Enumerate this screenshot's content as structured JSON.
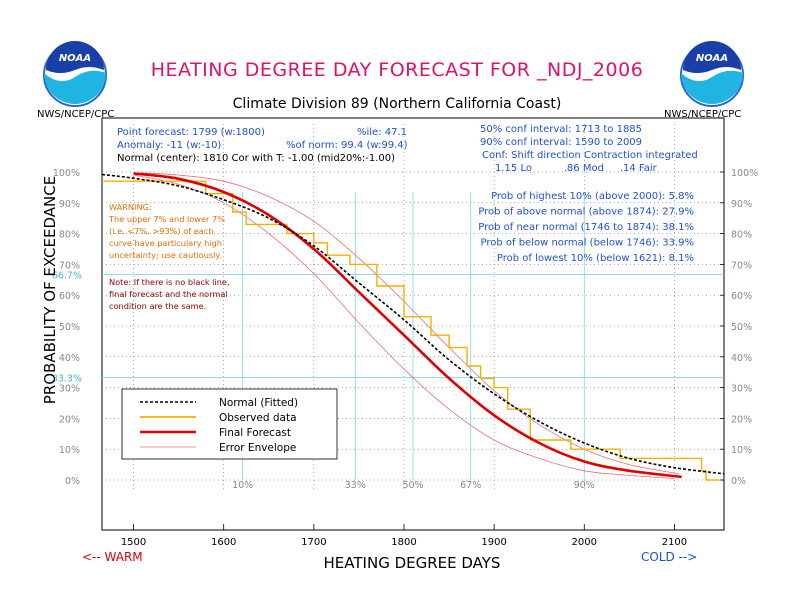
{
  "header": {
    "title": "HEATING DEGREE DAY FORECAST FOR _NDJ_2006",
    "subtitle": "Climate Division 89 (Northern California Coast)",
    "agency_left": "NWS/NCEP/CPC",
    "agency_right": "NWS/NCEP/CPC",
    "logo_text": "NOAA"
  },
  "info": {
    "line1a": "Point forecast: 1799 (w:1800)",
    "line1b": "%ile: 47.1",
    "line2a": "Anomaly: -11 (w:-10)",
    "line2b": "%of norm: 99.4 (w:99.4)",
    "line3": "Normal (center): 1810 Cor with T: -1.00 (mid20%:-1.00)",
    "conf50": "50% conf interval: 1713 to 1885",
    "conf90": "90% conf interval: 1590 to 2009",
    "conf_shift": "Conf: Shift direction  Contraction  integrated",
    "conf_vals": "1.15 Lo          .86 Mod     .14 Fair"
  },
  "probs": [
    "Prob of highest 10% (above 2000): 5.8%",
    "Prob of above normal (above 1874): 27.9%",
    "Prob of near normal (1746 to 1874): 38.1%",
    "Prob of below normal (below 1746): 33.9%",
    "Prob of lowest 10% (below 1621): 8.1%"
  ],
  "warning": [
    "WARNING:",
    "The upper 7% and lower 7%",
    "(i.e. <7%, >93%) of each",
    "curve have particulary high",
    "uncertainty; use cautiously."
  ],
  "note": [
    "Note: If there is no black line,",
    "final forecast and  the normal",
    "condition are the same."
  ],
  "labels": {
    "warm": "<-- WARM",
    "cold": "COLD -->",
    "special_ticks": [
      "66.7%",
      "33.3%"
    ]
  },
  "colors": {
    "title": "#e0106e",
    "info_blue": "#1f4fd8",
    "observed": "#f2b000",
    "forecast": "#e00000",
    "envelope": "#e87070",
    "warning": "#e07000",
    "note": "#8b0000",
    "cyan": "#7fd4e8"
  },
  "chart_data": {
    "type": "line",
    "xlabel": "HEATING DEGREE DAYS",
    "ylabel": "PROBABILITY OF EXCEEDANCE",
    "xlim": [
      1465,
      2155
    ],
    "ylim": [
      0,
      100
    ],
    "x_ticks": [
      1500,
      1600,
      1700,
      1800,
      1900,
      2000,
      2100
    ],
    "y_ticks": [
      0,
      10,
      20,
      30,
      40,
      50,
      60,
      70,
      80,
      90,
      100
    ],
    "y_tick_labels": [
      "0%",
      "10%",
      "20%",
      "30%",
      "40%",
      "50%",
      "60%",
      "70%",
      "80%",
      "90%",
      "100%"
    ],
    "percentile_markers": [
      {
        "label": "10%",
        "x": 1621
      },
      {
        "label": "33%",
        "x": 1746
      },
      {
        "label": "50%",
        "x": 1810
      },
      {
        "label": "67%",
        "x": 1874
      },
      {
        "label": "90%",
        "x": 2000
      }
    ],
    "legend": [
      "Normal (Fitted)",
      "Observed data",
      "Final Forecast",
      "Error Envelope"
    ],
    "legend_position": "lower-left",
    "series": [
      {
        "name": "Normal (Fitted)",
        "x": [
          1465,
          1500,
          1550,
          1600,
          1650,
          1700,
          1750,
          1800,
          1850,
          1900,
          1950,
          2000,
          2050,
          2100,
          2155
        ],
        "values": [
          99.2,
          98,
          95.5,
          91,
          85,
          76,
          64,
          52,
          39,
          28,
          19,
          12,
          7,
          4,
          2
        ]
      },
      {
        "name": "Observed data",
        "x": [
          1465,
          1580,
          1580,
          1610,
          1610,
          1625,
          1625,
          1670,
          1670,
          1700,
          1700,
          1715,
          1715,
          1740,
          1740,
          1770,
          1770,
          1800,
          1800,
          1830,
          1830,
          1850,
          1850,
          1870,
          1870,
          1885,
          1885,
          1900,
          1900,
          1915,
          1915,
          1940,
          1940,
          1985,
          1985,
          2040,
          2040,
          2130,
          2130,
          2135,
          2135,
          2150
        ],
        "values": [
          97,
          97,
          93,
          93,
          87,
          87,
          83,
          83,
          80,
          80,
          77,
          77,
          73,
          73,
          70,
          70,
          63,
          63,
          53,
          53,
          47,
          47,
          43,
          43,
          37,
          37,
          33,
          33,
          30,
          30,
          23,
          23,
          13,
          13,
          10,
          10,
          7,
          7,
          3,
          3,
          0,
          0
        ]
      },
      {
        "name": "Final Forecast",
        "x": [
          1500,
          1550,
          1600,
          1650,
          1700,
          1750,
          1800,
          1850,
          1900,
          1950,
          2000,
          2050,
          2108
        ],
        "values": [
          99.5,
          97.8,
          93.5,
          86,
          75,
          61,
          47,
          33,
          21,
          12,
          6,
          3,
          1
        ]
      },
      {
        "name": "Error Envelope (upper)",
        "x": [
          1500,
          1550,
          1600,
          1650,
          1700,
          1750,
          1800,
          1850,
          1900,
          1950,
          2000,
          2050,
          2105
        ],
        "values": [
          99.8,
          99,
          97,
          92,
          84,
          72,
          58,
          43,
          29,
          18,
          10,
          5,
          2
        ]
      },
      {
        "name": "Error Envelope (lower)",
        "x": [
          1500,
          1550,
          1600,
          1650,
          1700,
          1750,
          1800,
          1850,
          1900,
          1950,
          2000,
          2050,
          2100
        ],
        "values": [
          99,
          96,
          90,
          80,
          67,
          51,
          36,
          23,
          13,
          7,
          3,
          1.5,
          0.5
        ]
      }
    ]
  }
}
